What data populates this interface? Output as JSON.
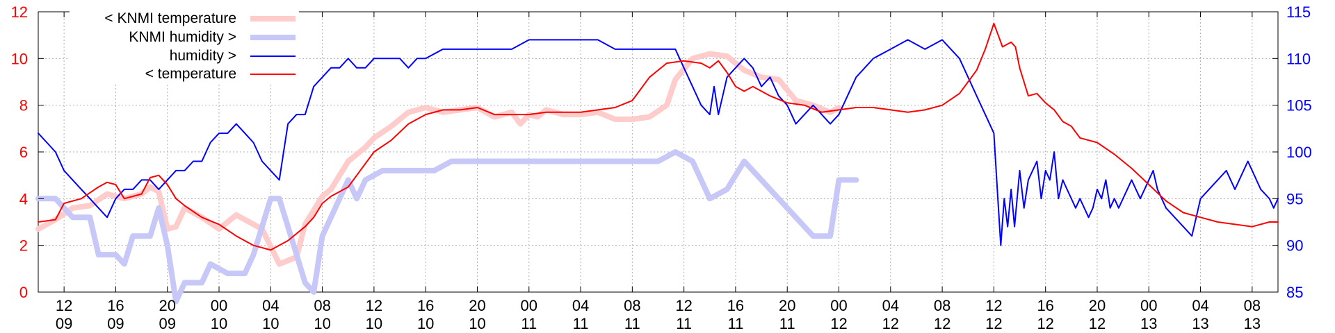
{
  "chart_data": {
    "type": "line",
    "title": "",
    "xlabel": "",
    "ylabel": "",
    "y2label": "",
    "grid": true,
    "legend_position": "top-left",
    "x_range_hours": [
      -3,
      141
    ],
    "ylim": [
      0,
      12
    ],
    "y2lim": [
      85,
      115
    ],
    "y_ticks": [
      0,
      2,
      4,
      6,
      8,
      10,
      12
    ],
    "y2_ticks": [
      85,
      90,
      95,
      100,
      105,
      110,
      115
    ],
    "x_ticks": [
      {
        "h": 0,
        "time": "12",
        "day": "09"
      },
      {
        "h": 6,
        "time": "16",
        "day": "09"
      },
      {
        "h": 12,
        "time": "20",
        "day": "09"
      },
      {
        "h": 18,
        "time": "00",
        "day": "10"
      },
      {
        "h": 24,
        "time": "04",
        "day": "10"
      },
      {
        "h": 30,
        "time": "08",
        "day": "10"
      },
      {
        "h": 36,
        "time": "12",
        "day": "10"
      },
      {
        "h": 42,
        "time": "16",
        "day": "10"
      },
      {
        "h": 48,
        "time": "20",
        "day": "10"
      },
      {
        "h": 54,
        "time": "00",
        "day": "11"
      },
      {
        "h": 60,
        "time": "04",
        "day": "11"
      },
      {
        "h": 66,
        "time": "08",
        "day": "11"
      },
      {
        "h": 72,
        "time": "12",
        "day": "11"
      },
      {
        "h": 78,
        "time": "16",
        "day": "11"
      },
      {
        "h": 84,
        "time": "20",
        "day": "11"
      },
      {
        "h": 90,
        "time": "00",
        "day": "12"
      },
      {
        "h": 96,
        "time": "04",
        "day": "12"
      },
      {
        "h": 102,
        "time": "08",
        "day": "12"
      },
      {
        "h": 108,
        "time": "12",
        "day": "12"
      },
      {
        "h": 114,
        "time": "16",
        "day": "12"
      },
      {
        "h": 120,
        "time": "20",
        "day": "12"
      },
      {
        "h": 126,
        "time": "00",
        "day": "13"
      },
      {
        "h": 132,
        "time": "04",
        "day": "13"
      },
      {
        "h": 138,
        "time": "08",
        "day": "13"
      }
    ],
    "colors": {
      "knmi_temperature": "#ffcccc",
      "knmi_humidity": "#c8c8f8",
      "humidity": "#0000ff",
      "temperature": "#ff0000",
      "left_axis": "#ff0000",
      "right_axis": "#0000ff"
    },
    "series": [
      {
        "name": "< KNMI temperature",
        "axis": "left",
        "x": [
          -3,
          -1,
          1,
          3,
          5,
          7,
          9,
          10,
          11,
          12,
          13,
          14,
          16,
          18,
          20,
          21,
          23,
          25,
          27,
          28,
          30,
          31,
          33,
          35,
          36,
          38,
          40,
          42,
          44,
          46,
          48,
          50,
          52,
          53,
          54,
          55,
          56,
          58,
          60,
          62,
          64,
          66,
          68,
          70,
          71,
          73,
          75,
          77,
          79,
          81,
          83,
          85,
          87,
          89,
          90
        ],
        "values": [
          2.7,
          3.1,
          3.6,
          3.7,
          4.2,
          4.0,
          4.2,
          4.5,
          4.3,
          2.7,
          2.8,
          3.6,
          3.2,
          2.7,
          3.3,
          3.1,
          2.7,
          1.2,
          1.5,
          2.9,
          4.1,
          4.4,
          5.6,
          6.2,
          6.6,
          7.1,
          7.7,
          7.9,
          7.7,
          7.8,
          7.9,
          7.5,
          7.7,
          7.2,
          7.6,
          7.5,
          7.8,
          7.6,
          7.6,
          7.7,
          7.4,
          7.4,
          7.5,
          8.0,
          9.1,
          10.0,
          10.2,
          10.1,
          9.5,
          9.2,
          9.1,
          8.2,
          8.0,
          7.7,
          7.9
        ]
      },
      {
        "name": "KNMI humidity >",
        "axis": "right",
        "x": [
          -3,
          -1,
          1,
          3,
          4,
          5,
          6,
          7,
          8,
          9,
          10,
          11,
          12,
          13,
          14,
          16,
          17,
          19,
          21,
          22,
          24,
          25,
          27,
          28,
          29,
          30,
          31,
          32,
          33,
          34,
          35,
          37,
          39,
          41,
          43,
          45,
          47,
          49,
          51,
          53,
          55,
          57,
          59,
          61,
          63,
          65,
          67,
          69,
          71,
          73,
          75,
          77,
          79,
          81,
          83,
          85,
          87,
          89,
          90,
          92
        ],
        "values": [
          95,
          95,
          93,
          93,
          89,
          89,
          89,
          88,
          91,
          91,
          91,
          94,
          90,
          84,
          86,
          86,
          88,
          87,
          87,
          89,
          95,
          95,
          89,
          86,
          85,
          91,
          93,
          95,
          97,
          95,
          97,
          98,
          98,
          98,
          98,
          99,
          99,
          99,
          99,
          99,
          99,
          99,
          99,
          99,
          99,
          99,
          99,
          99,
          100,
          99,
          95,
          96,
          99,
          97,
          95,
          93,
          91,
          91,
          97,
          97
        ]
      },
      {
        "name": "humidity >",
        "axis": "right",
        "x": [
          -3,
          -2,
          -1,
          0,
          1,
          2,
          3,
          4,
          5,
          6,
          7,
          8,
          9,
          10,
          11,
          12,
          13,
          14,
          15,
          16,
          17,
          18,
          19,
          20,
          21,
          22,
          23,
          24,
          25,
          26,
          27,
          28,
          29,
          30,
          31,
          32,
          33,
          34,
          35,
          36,
          37,
          38,
          39,
          40,
          41,
          42,
          44,
          46,
          48,
          50,
          52,
          54,
          56,
          58,
          60,
          62,
          64,
          66,
          68,
          70,
          71,
          72,
          73,
          74,
          75,
          75.5,
          76,
          77,
          78,
          79,
          80,
          81,
          82,
          83,
          84,
          85,
          86,
          87,
          88,
          89,
          90,
          91,
          92,
          94,
          96,
          98,
          100,
          102,
          103,
          104,
          105,
          106,
          107,
          108,
          108.4,
          108.8,
          109.2,
          109.6,
          110,
          110.4,
          111,
          111.5,
          112,
          112.5,
          113,
          113.5,
          114,
          114.5,
          115,
          115.5,
          116,
          116.5,
          117,
          117.5,
          118,
          118.5,
          119,
          119.5,
          120,
          120.5,
          121,
          121.5,
          122,
          122.5,
          123,
          123.5,
          124,
          124.5,
          125,
          125.5,
          126,
          126.5,
          127,
          127.5,
          128,
          129,
          130,
          131,
          132,
          133,
          134,
          135,
          136,
          136.5,
          137,
          137.5,
          138,
          138.5,
          139,
          140,
          140.5,
          141
        ],
        "values": [
          102,
          101,
          100,
          98,
          97,
          96,
          95,
          94,
          93,
          95,
          96,
          96,
          97,
          97,
          96,
          97,
          98,
          98,
          99,
          99,
          101,
          102,
          102,
          103,
          102,
          101,
          99,
          98,
          97,
          103,
          104,
          104,
          107,
          108,
          109,
          109,
          110,
          109,
          109,
          110,
          110,
          110,
          110,
          109,
          110,
          110,
          111,
          111,
          111,
          111,
          111,
          112,
          112,
          112,
          112,
          112,
          111,
          111,
          111,
          111,
          111,
          109,
          107,
          105,
          104,
          107,
          104,
          108,
          109,
          110,
          109,
          107,
          108,
          106,
          105,
          103,
          104,
          105,
          104,
          103,
          104,
          106,
          108,
          110,
          111,
          112,
          111,
          112,
          111,
          110,
          108,
          106,
          104,
          102,
          96,
          90,
          95,
          92,
          96,
          92,
          98,
          94,
          97,
          98,
          99,
          95,
          98,
          97,
          100,
          95,
          97,
          96,
          95,
          94,
          95,
          94,
          93,
          94,
          96,
          95,
          97,
          94,
          95,
          94,
          95,
          96,
          97,
          96,
          95,
          96,
          97,
          98,
          96,
          95,
          94,
          93,
          92,
          91,
          95,
          96,
          97,
          98,
          96,
          97,
          98,
          99,
          98,
          97,
          96,
          95,
          94,
          95
        ]
      },
      {
        "name": "< temperature",
        "axis": "left",
        "x": [
          -3,
          -1,
          0,
          2,
          4,
          5,
          6,
          7,
          8,
          9,
          10,
          11,
          12,
          13,
          14,
          16,
          18,
          20,
          22,
          24,
          26,
          28,
          29,
          30,
          31,
          32,
          33,
          34,
          36,
          38,
          40,
          42,
          44,
          46,
          48,
          50,
          52,
          54,
          56,
          58,
          60,
          62,
          64,
          66,
          68,
          70,
          72,
          74,
          75,
          76,
          77,
          78,
          79,
          80,
          82,
          84,
          86,
          88,
          90,
          92,
          94,
          96,
          98,
          100,
          102,
          104,
          106,
          107,
          108,
          109,
          110,
          110.5,
          111,
          111.5,
          112,
          113,
          114,
          115,
          116,
          117,
          118,
          120,
          122,
          124,
          126,
          128,
          130,
          132,
          134,
          136,
          138,
          140,
          141
        ],
        "values": [
          3.0,
          3.1,
          3.8,
          4.0,
          4.5,
          4.7,
          4.6,
          4.0,
          4.1,
          4.2,
          4.9,
          5.0,
          4.6,
          4.0,
          3.7,
          3.2,
          2.9,
          2.4,
          2.0,
          1.8,
          2.2,
          2.8,
          3.2,
          3.8,
          4.1,
          4.3,
          4.5,
          5.0,
          6.0,
          6.5,
          7.2,
          7.6,
          7.8,
          7.8,
          7.9,
          7.6,
          7.6,
          7.6,
          7.7,
          7.7,
          7.7,
          7.8,
          7.9,
          8.2,
          9.2,
          9.8,
          9.9,
          9.8,
          9.6,
          9.9,
          9.4,
          8.8,
          8.6,
          8.8,
          8.4,
          8.1,
          8.0,
          7.7,
          7.8,
          7.9,
          7.9,
          7.8,
          7.7,
          7.8,
          8.0,
          8.5,
          9.5,
          10.4,
          11.5,
          10.5,
          10.7,
          10.5,
          9.6,
          9.0,
          8.4,
          8.5,
          8.1,
          7.8,
          7.3,
          7.1,
          6.6,
          6.4,
          5.9,
          5.3,
          4.6,
          3.9,
          3.4,
          3.2,
          3.0,
          2.9,
          2.8,
          3.0,
          3.0
        ]
      }
    ]
  }
}
